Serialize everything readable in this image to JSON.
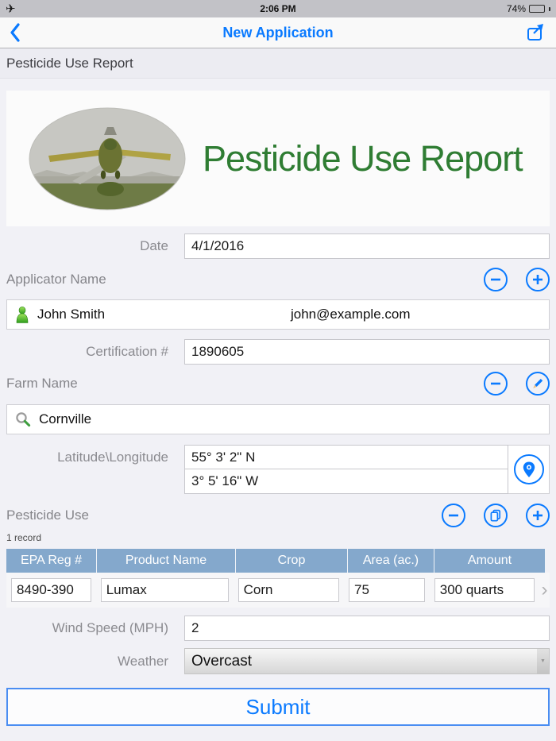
{
  "status_bar": {
    "time": "2:06 PM",
    "battery_percent": "74%",
    "battery_level": 74
  },
  "nav": {
    "title": "New Application"
  },
  "breadcrumb": {
    "title": "Pesticide Use Report"
  },
  "hero": {
    "title": "Pesticide Use Report"
  },
  "form": {
    "date": {
      "label": "Date",
      "value": "4/1/2016"
    },
    "applicator": {
      "section_label": "Applicator Name",
      "name": "John Smith",
      "email": "john@example.com",
      "cert_label": "Certification #",
      "cert_value": "1890605"
    },
    "farm": {
      "section_label": "Farm Name",
      "search_value": "Cornville",
      "latlong_label": "Latitude\\Longitude",
      "latitude": "55° 3' 2\" N",
      "longitude": "3° 5' 16\" W"
    },
    "pesticide": {
      "section_label": "Pesticide Use",
      "record_count": "1 record",
      "table": {
        "headers": [
          "EPA Reg #",
          "Product Name",
          "Crop",
          "Area (ac.)",
          "Amount"
        ],
        "row": {
          "epa_reg": "8490-390",
          "product": "Lumax",
          "crop": "Corn",
          "area": "75",
          "amount": "300 quarts"
        },
        "chevron": "›"
      }
    },
    "wind": {
      "label": "Wind Speed (MPH)",
      "value": "2"
    },
    "weather": {
      "label": "Weather",
      "value": "Overcast"
    }
  },
  "submit": {
    "label": "Submit"
  },
  "colors": {
    "accent": "#0a7aff",
    "table_header": "#84a8cc",
    "hero_green": "#2f7d33",
    "status_bar_bg": "#c2c2c7"
  }
}
